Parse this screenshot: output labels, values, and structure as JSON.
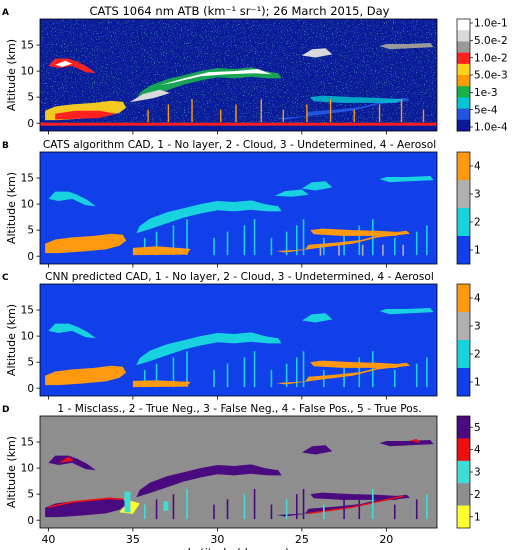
{
  "chart_data": [
    {
      "type": "heatmap",
      "panel_letter": "A",
      "title": "CATS 1064 nm ATB (km⁻¹ sr⁻¹); 26 March 2015, Day",
      "xlabel": "",
      "ylabel": "Altitude (km)",
      "xlim": [
        40.5,
        17
      ],
      "ylim": [
        -1.5,
        20
      ],
      "x_ticks": [
        "40",
        "35",
        "30",
        "25",
        "20"
      ],
      "y_ticks": [
        "0",
        "5",
        "10",
        "15"
      ],
      "colorbar_ticks": [
        "1.0e-1",
        "5.0e-2",
        "1.0e-2",
        "5.0e-3",
        "1e-3",
        "5e-4",
        "1.0e-4"
      ],
      "colorbar_colors": [
        "#ffffff",
        "#d9d9d9",
        "#9a9a9a",
        "#ff2020",
        "#ffd21a",
        "#ff9a00",
        "#19b14b",
        "#00c8d0",
        "#2255e0",
        "#0a1a9a"
      ]
    },
    {
      "type": "heatmap",
      "panel_letter": "B",
      "title": "CATS algorithm CAD, 1 - No layer, 2 - Cloud, 3 - Undetermined, 4 - Aerosol",
      "xlabel": "",
      "ylabel": "Altitude (km)",
      "xlim": [
        40.5,
        17
      ],
      "ylim": [
        -1.5,
        20
      ],
      "x_ticks": [
        "40",
        "35",
        "30",
        "25",
        "20"
      ],
      "y_ticks": [
        "0",
        "5",
        "10",
        "15"
      ],
      "colorbar_ticks": [
        "4",
        "3",
        "2",
        "1"
      ],
      "colorbar_colors": [
        "#ff9a10",
        "#b0b0b0",
        "#18d2e0",
        "#1140e8"
      ]
    },
    {
      "type": "heatmap",
      "panel_letter": "C",
      "title": "CNN predicted CAD, 1 - No layer, 2 - Cloud, 3 - Undetermined, 4 - Aerosol",
      "xlabel": "",
      "ylabel": "Altitude (km)",
      "xlim": [
        40.5,
        17
      ],
      "ylim": [
        -1.5,
        20
      ],
      "x_ticks": [
        "40",
        "35",
        "30",
        "25",
        "20"
      ],
      "y_ticks": [
        "0",
        "5",
        "10",
        "15"
      ],
      "colorbar_ticks": [
        "4",
        "3",
        "2",
        "1"
      ],
      "colorbar_colors": [
        "#ff9a10",
        "#b0b0b0",
        "#18d2e0",
        "#1140e8"
      ]
    },
    {
      "type": "heatmap",
      "panel_letter": "D",
      "title": "1 - Misclass., 2 - True Neg., 3 - False Neg., 4 - False Pos., 5 - True Pos.",
      "xlabel": "Latitude (degrees)",
      "ylabel": "Altitude (km)",
      "xlim": [
        40.5,
        17
      ],
      "ylim": [
        -1.5,
        20
      ],
      "x_ticks": [
        "40",
        "35",
        "30",
        "25",
        "20"
      ],
      "y_ticks": [
        "0",
        "5",
        "10",
        "15"
      ],
      "colorbar_ticks": [
        "5",
        "4",
        "3",
        "2",
        "1"
      ],
      "colorbar_colors": [
        "#4a0a80",
        "#ee1010",
        "#40dcd8",
        "#8e8e8e",
        "#ffff30"
      ]
    }
  ]
}
